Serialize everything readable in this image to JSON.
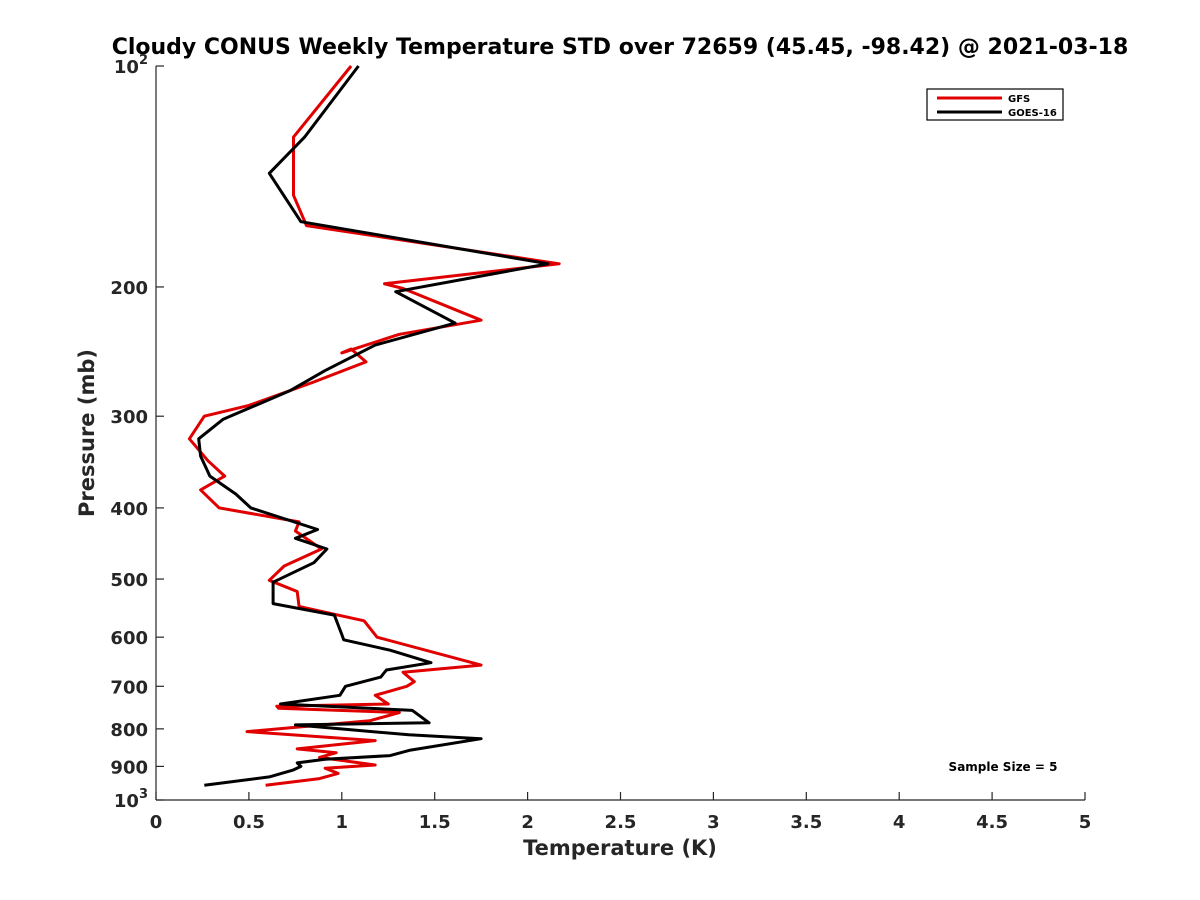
{
  "chart_data": {
    "type": "line",
    "title": "Cloudy CONUS Weekly Temperature STD over 72659 (45.45, -98.42) @ 2021-03-18",
    "xlabel": "Temperature (K)",
    "ylabel": "Pressure (mb)",
    "xlim": [
      0,
      5
    ],
    "ylim": [
      100,
      1000
    ],
    "y_scale": "log",
    "y_reversed": true,
    "x_ticks": [
      "0",
      "0.5",
      "1",
      "1.5",
      "2",
      "2.5",
      "3",
      "3.5",
      "4",
      "4.5",
      "5"
    ],
    "y_ticks": [
      {
        "value": 100,
        "base": "10",
        "exp": "2"
      },
      {
        "value": 200,
        "label": "200"
      },
      {
        "value": 300,
        "label": "300"
      },
      {
        "value": 400,
        "label": "400"
      },
      {
        "value": 500,
        "label": "500"
      },
      {
        "value": 600,
        "label": "600"
      },
      {
        "value": 700,
        "label": "700"
      },
      {
        "value": 800,
        "label": "800"
      },
      {
        "value": 900,
        "label": "900"
      },
      {
        "value": 1000,
        "base": "10",
        "exp": "3"
      }
    ],
    "legend": {
      "position": "top-right"
    },
    "annotation": "Sample Size = 5",
    "series": [
      {
        "name": "GFS",
        "color": "#e00000",
        "points": [
          [
            1.05,
            100
          ],
          [
            0.74,
            125
          ],
          [
            0.74,
            150
          ],
          [
            0.81,
            165
          ],
          [
            2.17,
            186
          ],
          [
            1.23,
            198
          ],
          [
            1.33,
            201
          ],
          [
            1.75,
            222
          ],
          [
            1.31,
            232
          ],
          [
            1.0,
            246
          ],
          [
            1.05,
            243
          ],
          [
            1.13,
            253
          ],
          [
            0.84,
            270
          ],
          [
            0.5,
            290
          ],
          [
            0.26,
            300
          ],
          [
            0.18,
            322
          ],
          [
            0.28,
            345
          ],
          [
            0.37,
            362
          ],
          [
            0.24,
            378
          ],
          [
            0.34,
            400
          ],
          [
            0.77,
            418
          ],
          [
            0.75,
            430
          ],
          [
            0.89,
            455
          ],
          [
            0.69,
            480
          ],
          [
            0.61,
            502
          ],
          [
            0.76,
            520
          ],
          [
            0.77,
            545
          ],
          [
            1.12,
            570
          ],
          [
            1.19,
            600
          ],
          [
            1.75,
            655
          ],
          [
            1.33,
            670
          ],
          [
            1.39,
            690
          ],
          [
            1.35,
            700
          ],
          [
            1.18,
            720
          ],
          [
            1.25,
            740
          ],
          [
            0.65,
            745
          ],
          [
            0.66,
            750
          ],
          [
            1.31,
            760
          ],
          [
            1.15,
            780
          ],
          [
            0.49,
            807
          ],
          [
            1.18,
            830
          ],
          [
            0.76,
            852
          ],
          [
            0.97,
            862
          ],
          [
            0.88,
            875
          ],
          [
            1.18,
            896
          ],
          [
            0.91,
            905
          ],
          [
            0.98,
            920
          ],
          [
            0.88,
            935
          ],
          [
            0.59,
            955
          ]
        ]
      },
      {
        "name": "GOES-16",
        "color": "#000000",
        "points": [
          [
            1.09,
            100
          ],
          [
            0.8,
            125
          ],
          [
            0.61,
            140
          ],
          [
            0.78,
            163
          ],
          [
            2.11,
            186
          ],
          [
            1.29,
            203
          ],
          [
            1.61,
            224
          ],
          [
            1.18,
            240
          ],
          [
            0.91,
            260
          ],
          [
            0.72,
            277
          ],
          [
            0.36,
            303
          ],
          [
            0.23,
            322
          ],
          [
            0.24,
            340
          ],
          [
            0.29,
            362
          ],
          [
            0.43,
            383
          ],
          [
            0.51,
            400
          ],
          [
            0.87,
            428
          ],
          [
            0.75,
            440
          ],
          [
            0.92,
            455
          ],
          [
            0.85,
            475
          ],
          [
            0.63,
            505
          ],
          [
            0.63,
            540
          ],
          [
            0.96,
            560
          ],
          [
            1.0,
            595
          ],
          [
            1.01,
            605
          ],
          [
            1.26,
            625
          ],
          [
            1.48,
            650
          ],
          [
            1.24,
            665
          ],
          [
            1.21,
            680
          ],
          [
            1.02,
            700
          ],
          [
            0.99,
            720
          ],
          [
            0.67,
            740
          ],
          [
            1.38,
            755
          ],
          [
            1.47,
            785
          ],
          [
            0.75,
            790
          ],
          [
            1.36,
            815
          ],
          [
            1.75,
            825
          ],
          [
            1.37,
            855
          ],
          [
            1.26,
            870
          ],
          [
            0.91,
            880
          ],
          [
            0.76,
            890
          ],
          [
            0.78,
            900
          ],
          [
            0.74,
            910
          ],
          [
            0.61,
            930
          ],
          [
            0.26,
            955
          ]
        ]
      }
    ]
  }
}
